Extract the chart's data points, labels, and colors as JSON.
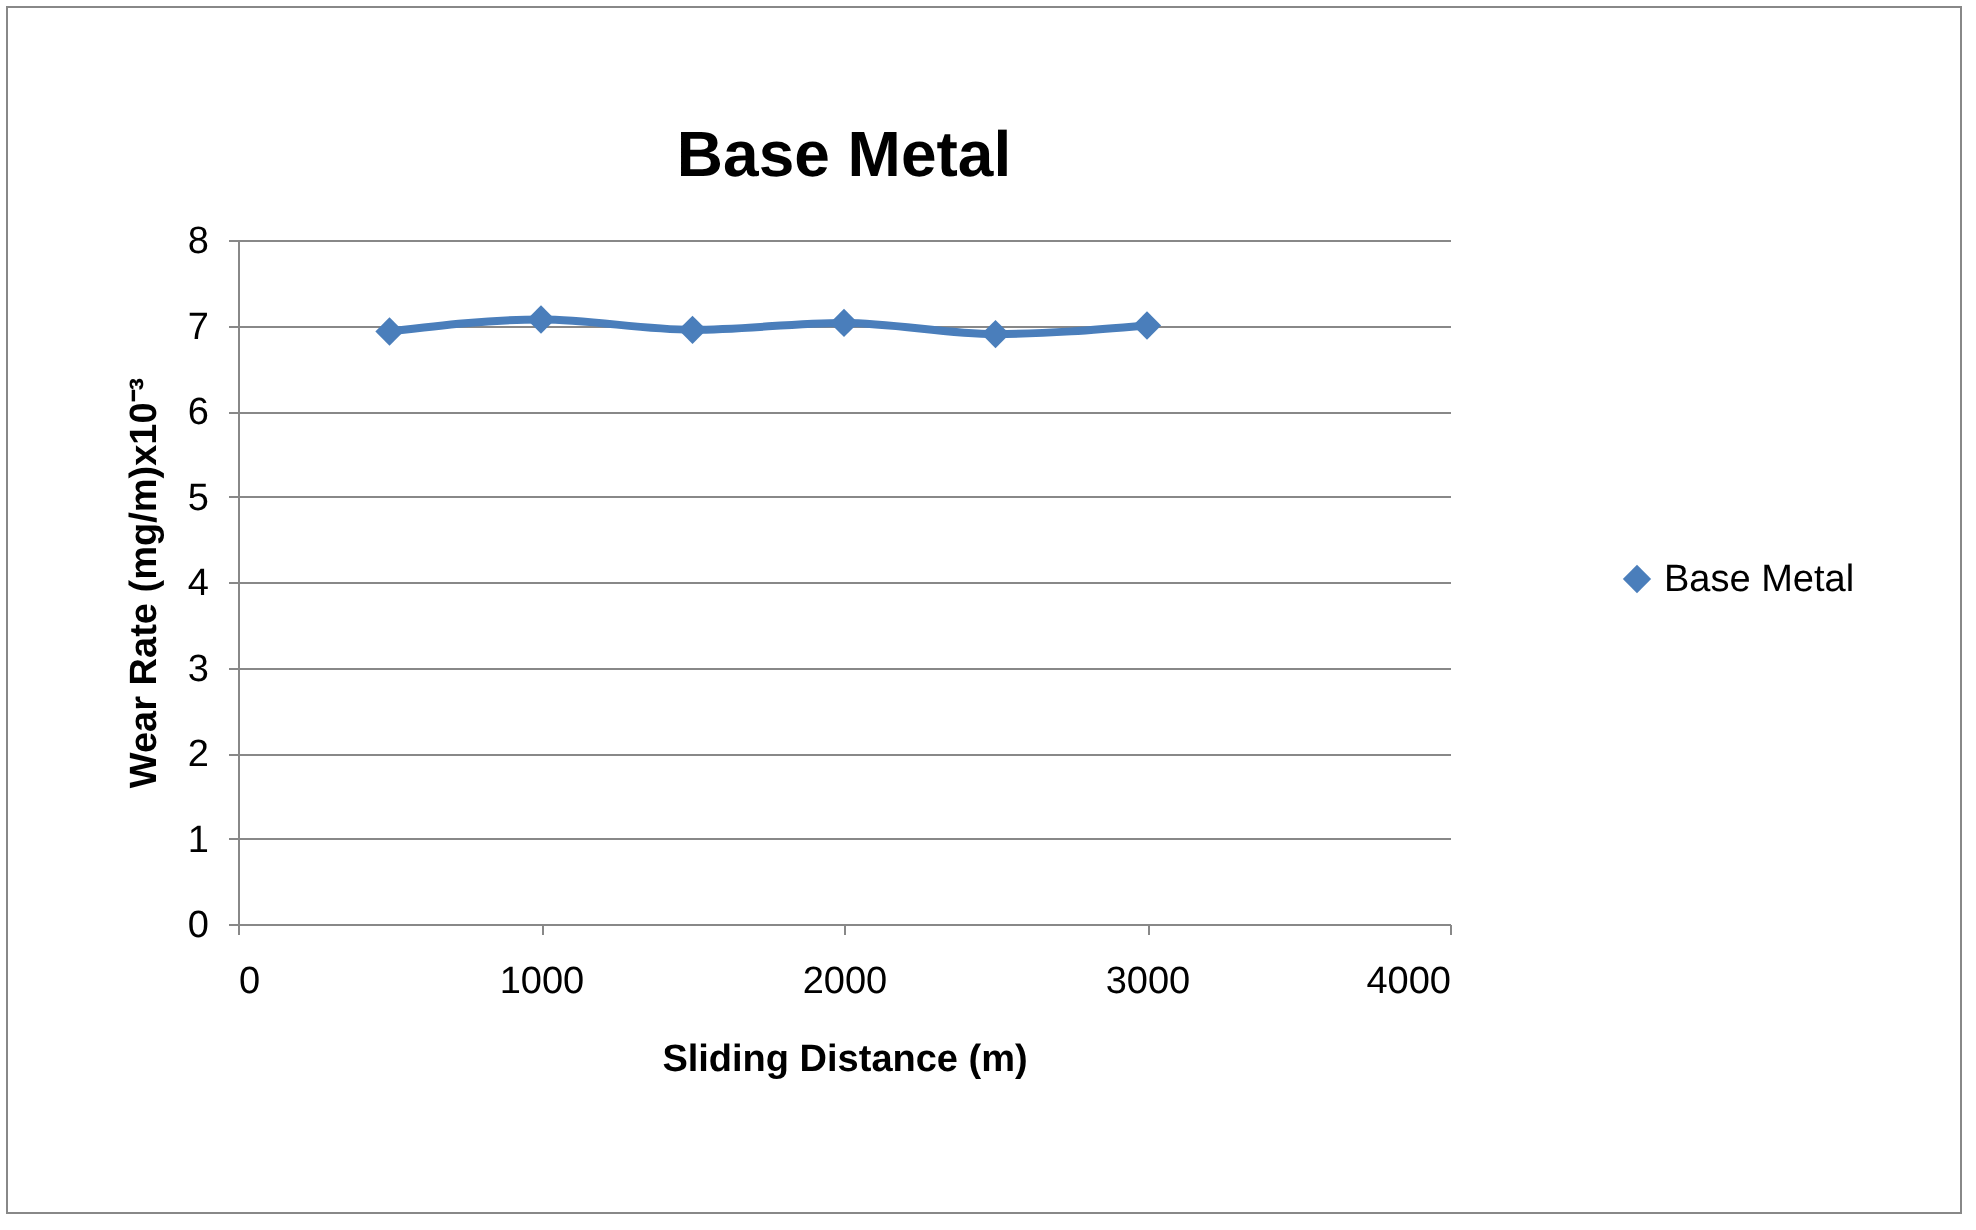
{
  "chart_data": {
    "type": "line",
    "title": "Base Metal",
    "xlabel": "Sliding Distance (m)",
    "ylabel": "Wear Rate (mg/m)x10⁻³",
    "x": [
      500,
      1000,
      1500,
      2000,
      2500,
      3000
    ],
    "series": [
      {
        "name": "Base Metal",
        "color": "#4a7ebb",
        "values": [
          6.93,
          7.07,
          6.95,
          7.03,
          6.9,
          7.0
        ]
      }
    ],
    "xlim": [
      0,
      4000
    ],
    "xticks": [
      0,
      1000,
      2000,
      3000,
      4000
    ],
    "ylim": [
      0,
      8
    ],
    "yticks": [
      0,
      1,
      2,
      3,
      4,
      5,
      6,
      7,
      8
    ],
    "grid": "y",
    "legend": "right",
    "marker": "diamond",
    "line_style": "solid"
  }
}
